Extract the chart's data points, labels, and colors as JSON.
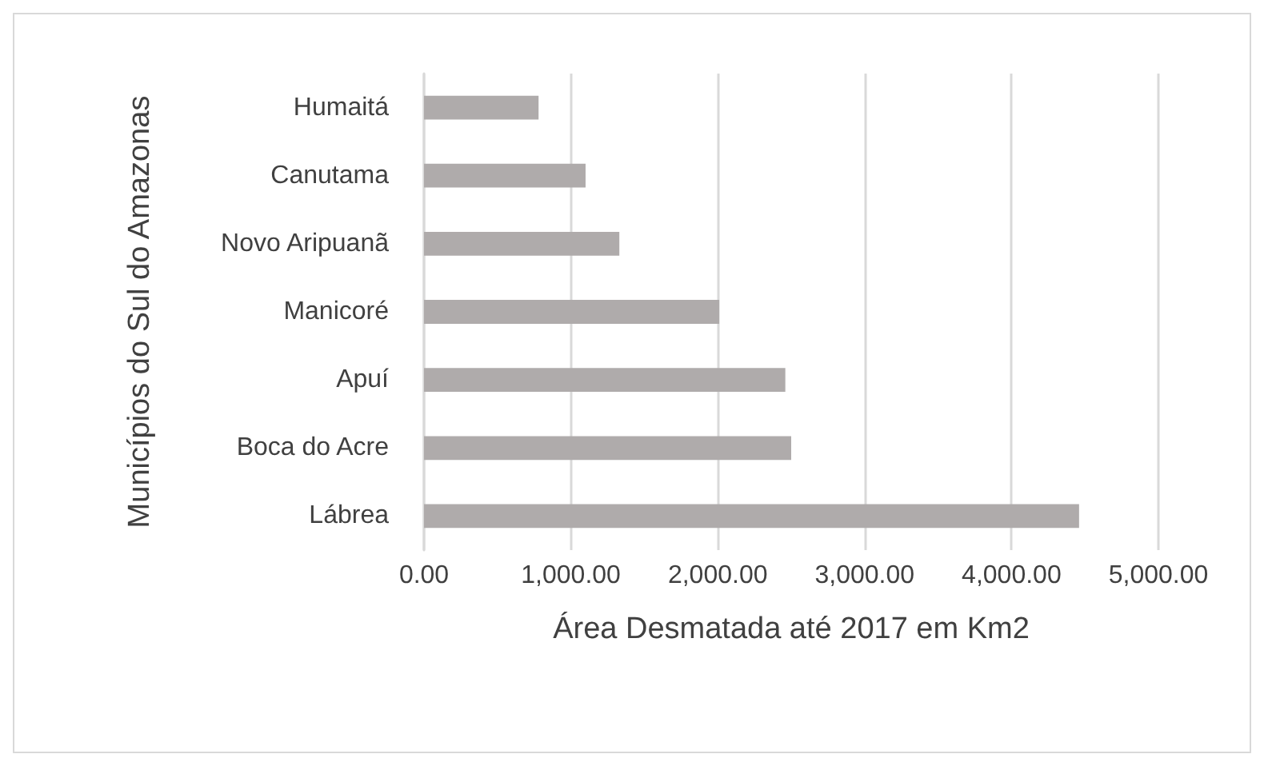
{
  "chart_data": {
    "type": "bar",
    "orientation": "horizontal",
    "xlabel": "Área Desmatada até 2017 em Km2",
    "ylabel": "Municípios do Sul do Amazonas",
    "categories": [
      "Humaitá",
      "Canutama",
      "Novo Aripuanã",
      "Manicoré",
      "Apuí",
      "Boca do Acre",
      "Lábrea"
    ],
    "values": [
      780,
      1100,
      1330,
      2010,
      2460,
      2500,
      4460
    ],
    "color": "#afabab",
    "xlim": [
      0,
      5000
    ],
    "xticks": [
      {
        "value": 0,
        "label": "0.00"
      },
      {
        "value": 1000,
        "label": "1,000.00"
      },
      {
        "value": 2000,
        "label": "2,000.00"
      },
      {
        "value": 3000,
        "label": "3,000.00"
      },
      {
        "value": 4000,
        "label": "4,000.00"
      },
      {
        "value": 5000,
        "label": "5,000.00"
      }
    ],
    "grid": "x"
  }
}
